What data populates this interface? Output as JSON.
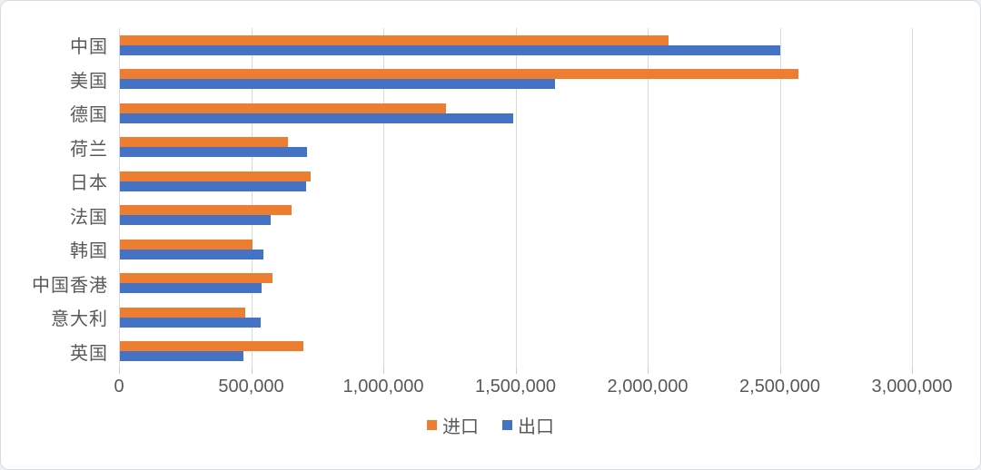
{
  "chart_data": {
    "type": "bar",
    "orientation": "horizontal",
    "title": "",
    "categories": [
      "中国",
      "美国",
      "德国",
      "荷兰",
      "日本",
      "法国",
      "韩国",
      "中国香港",
      "意大利",
      "英国"
    ],
    "series": [
      {
        "name": "进口",
        "color": "#ED7D31",
        "values": [
          2077097,
          2567445,
          1234454,
          635678,
          720957,
          651125,
          503343,
          577834,
          473562,
          692494
        ]
      },
      {
        "name": "出口",
        "color": "#4472C4",
        "values": [
          2499457,
          1645174,
          1489158,
          709229,
          705564,
          569732,
          542233,
          535710,
          532684,
          468817
        ]
      }
    ],
    "xlim": [
      0,
      3000000
    ],
    "x_ticks": [
      0,
      500000,
      1000000,
      1500000,
      2000000,
      2500000,
      3000000
    ],
    "x_tick_labels": [
      "0",
      "500,000",
      "1,000,000",
      "1,500,000",
      "2,000,000",
      "2,500,000",
      "3,000,000"
    ],
    "grid": true,
    "legend_position": "bottom"
  },
  "legend": {
    "import_label": "进口",
    "export_label": "出口"
  },
  "colors": {
    "import": "#ED7D31",
    "export": "#4472C4",
    "gridline": "#D9D9D9",
    "axis_text": "#595959",
    "background": "#FFFFFF",
    "border": "#D8DCE1"
  }
}
